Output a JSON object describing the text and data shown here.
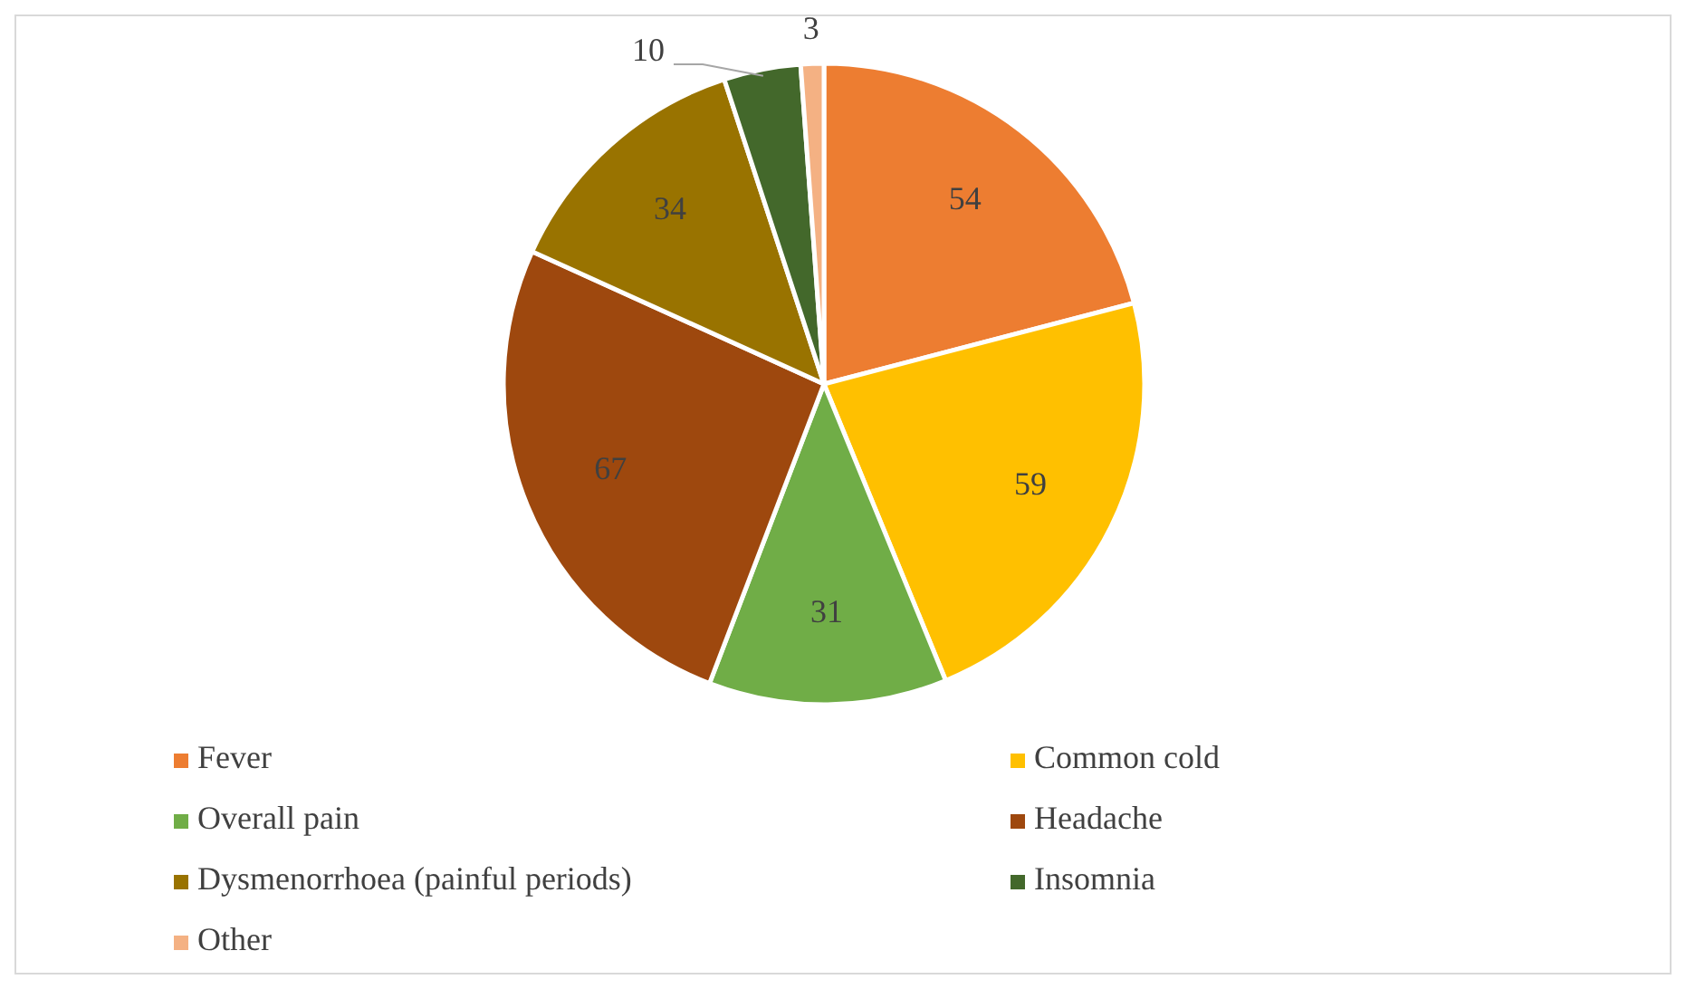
{
  "chart_data": {
    "type": "pie",
    "categories": [
      "Fever",
      "Common cold",
      "Overall pain",
      "Headache",
      "Dysmenorrhoea (painful periods)",
      "Insomnia",
      "Other"
    ],
    "values": [
      54,
      59,
      31,
      67,
      34,
      10,
      3
    ],
    "colors": [
      "#ed7d31",
      "#ffc000",
      "#70ad47",
      "#9e480e",
      "#997300",
      "#43682b",
      "#f4b183"
    ],
    "data_labels": true,
    "legend": "bottom"
  }
}
